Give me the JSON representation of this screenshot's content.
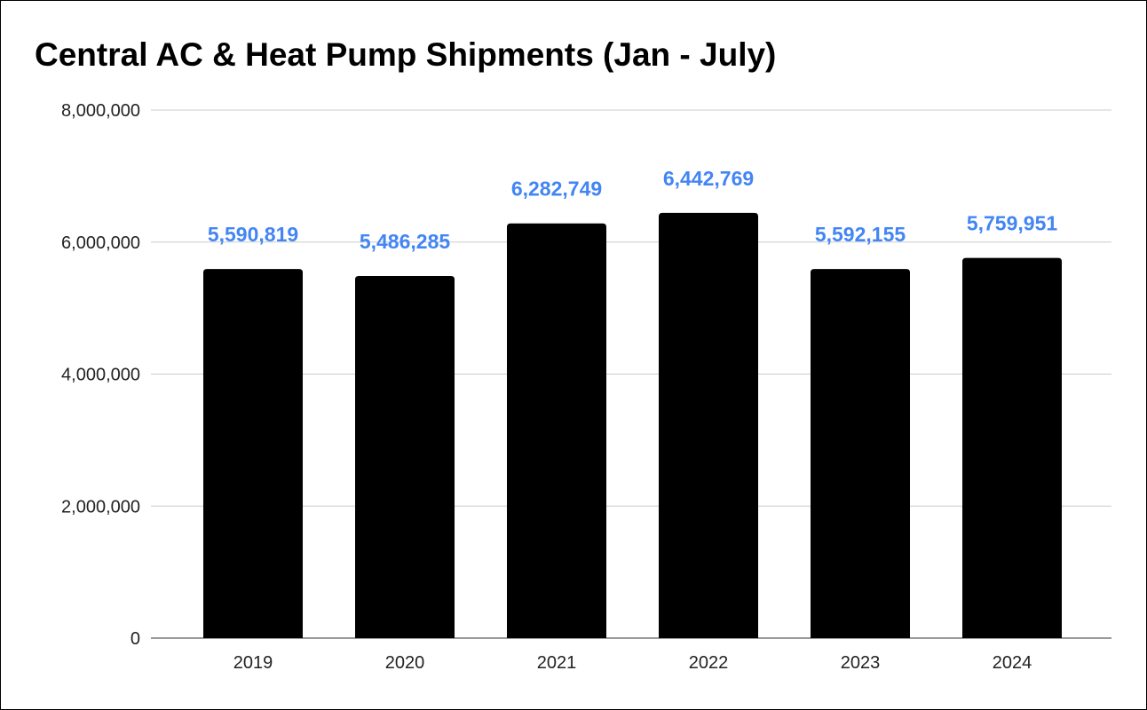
{
  "chart_data": {
    "type": "bar",
    "title": "Central AC & Heat Pump Shipments (Jan - July)",
    "xlabel": "",
    "ylabel": "",
    "categories": [
      "2019",
      "2020",
      "2021",
      "2022",
      "2023",
      "2024"
    ],
    "values": [
      5590819,
      5486285,
      6282749,
      6442769,
      5592155,
      5759951
    ],
    "data_labels": [
      "5,590,819",
      "5,486,285",
      "6,282,749",
      "6,442,769",
      "5,592,155",
      "5,759,951"
    ],
    "ylim": [
      0,
      8000000
    ],
    "yticks": [
      0,
      2000000,
      4000000,
      6000000,
      8000000
    ],
    "ytick_labels": [
      "0",
      "2,000,000",
      "4,000,000",
      "6,000,000",
      "8,000,000"
    ],
    "grid": true,
    "legend": "none",
    "colors": {
      "bar": "#000000",
      "data_label": "#4285f4",
      "grid": "#cccccc"
    }
  }
}
